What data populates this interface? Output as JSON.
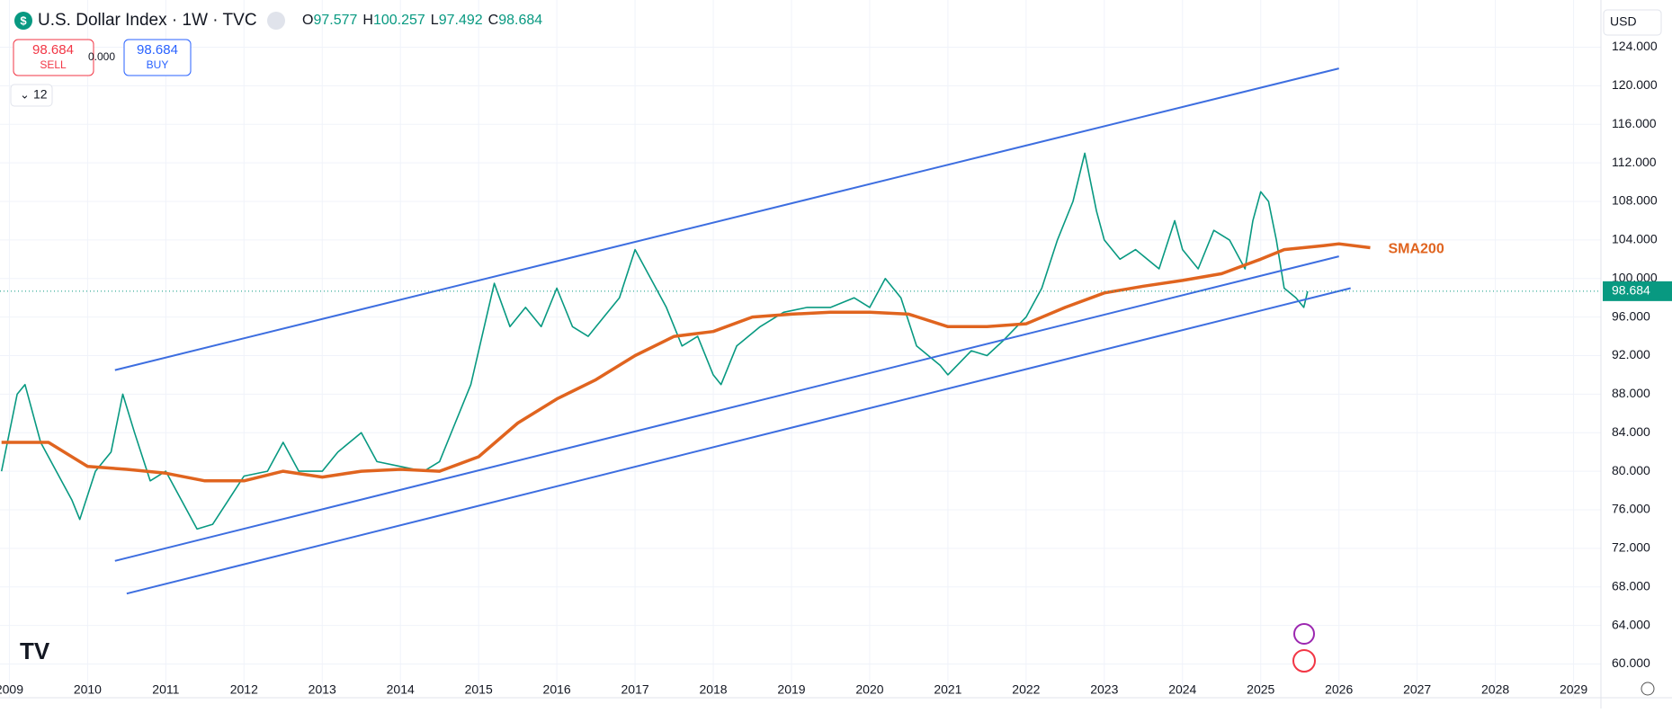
{
  "chart_data": {
    "type": "line",
    "title": "U.S. Dollar Index · 1W · TVC",
    "ohlc": [
      {
        "label": "O",
        "value": "97.577"
      },
      {
        "label": "H",
        "value": "100.257"
      },
      {
        "label": "L",
        "value": "97.492"
      },
      {
        "label": "C",
        "value": "98.684"
      }
    ],
    "sell": {
      "price": "98.684",
      "label": "SELL"
    },
    "spread": "0.000",
    "buy": {
      "price": "98.684",
      "label": "BUY"
    },
    "interval_menu": "12",
    "currency": "USD",
    "last_price": {
      "value": 98.684,
      "label": "98.684"
    },
    "xlim": [
      2008.88,
      2029.35
    ],
    "ylim": [
      56.5,
      128.9
    ],
    "xticks": [
      2009,
      2010,
      2011,
      2012,
      2013,
      2014,
      2015,
      2016,
      2017,
      2018,
      2019,
      2020,
      2021,
      2022,
      2023,
      2024,
      2025,
      2026,
      2027,
      2028,
      2029
    ],
    "yticks": [
      {
        "value": 60,
        "label": "60.000"
      },
      {
        "value": 64,
        "label": "64.000"
      },
      {
        "value": 68,
        "label": "68.000"
      },
      {
        "value": 72,
        "label": "72.000"
      },
      {
        "value": 76,
        "label": "76.000"
      },
      {
        "value": 80,
        "label": "80.000"
      },
      {
        "value": 84,
        "label": "84.000"
      },
      {
        "value": 88,
        "label": "88.000"
      },
      {
        "value": 92,
        "label": "92.000"
      },
      {
        "value": 96,
        "label": "96.000"
      },
      {
        "value": 100,
        "label": "100.000"
      },
      {
        "value": 104,
        "label": "104.000"
      },
      {
        "value": 108,
        "label": "108.000"
      },
      {
        "value": 112,
        "label": "112.000"
      },
      {
        "value": 116,
        "label": "116.000"
      },
      {
        "value": 120,
        "label": "120.000"
      },
      {
        "value": 124,
        "label": "124.000"
      }
    ],
    "series": [
      {
        "color": "#089981",
        "x": [
          2008.9,
          2009.1,
          2009.2,
          2009.4,
          2009.6,
          2009.8,
          2009.9,
          2010.1,
          2010.3,
          2010.45,
          2010.6,
          2010.8,
          2011.0,
          2011.2,
          2011.4,
          2011.6,
          2011.8,
          2012.0,
          2012.3,
          2012.5,
          2012.7,
          2013.0,
          2013.2,
          2013.5,
          2013.7,
          2014.0,
          2014.3,
          2014.5,
          2014.7,
          2014.9,
          2015.1,
          2015.2,
          2015.4,
          2015.6,
          2015.8,
          2016.0,
          2016.2,
          2016.4,
          2016.6,
          2016.8,
          2017.0,
          2017.2,
          2017.4,
          2017.6,
          2017.8,
          2018.0,
          2018.1,
          2018.3,
          2018.6,
          2018.9,
          2019.2,
          2019.5,
          2019.8,
          2020.0,
          2020.2,
          2020.4,
          2020.6,
          2020.9,
          2021.0,
          2021.3,
          2021.5,
          2021.7,
          2022.0,
          2022.2,
          2022.4,
          2022.6,
          2022.75,
          2022.9,
          2023.0,
          2023.2,
          2023.4,
          2023.7,
          2023.9,
          2024.0,
          2024.2,
          2024.4,
          2024.6,
          2024.8,
          2024.9,
          2025.0,
          2025.1,
          2025.2,
          2025.3,
          2025.45,
          2025.55,
          2025.6
        ],
        "values": [
          80,
          88,
          89,
          83,
          80,
          77,
          75,
          80,
          82,
          88,
          84,
          79,
          80,
          77,
          74,
          74.5,
          77,
          79.5,
          80,
          83,
          80,
          80,
          82,
          84,
          81,
          80.5,
          80,
          81,
          85,
          89,
          96,
          99.5,
          95,
          97,
          95,
          99,
          95,
          94,
          96,
          98,
          103,
          100,
          97,
          93,
          94,
          90,
          89,
          93,
          95,
          96.5,
          97,
          97,
          98,
          97,
          100,
          98,
          93,
          91,
          90,
          92.5,
          92,
          93.5,
          96,
          99,
          104,
          108,
          113,
          107,
          104,
          102,
          103,
          101,
          106,
          103,
          101,
          105,
          104,
          101,
          106,
          109,
          108,
          104,
          99,
          98,
          97,
          98.684
        ]
      },
      {
        "name": "SMA200",
        "color": "#e0641f",
        "x": [
          2008.9,
          2009.5,
          2010.0,
          2010.5,
          2011.0,
          2011.5,
          2012.0,
          2012.5,
          2013.0,
          2013.5,
          2014.0,
          2014.5,
          2015.0,
          2015.5,
          2016.0,
          2016.5,
          2017.0,
          2017.5,
          2018.0,
          2018.5,
          2019.0,
          2019.5,
          2020.0,
          2020.5,
          2021.0,
          2021.5,
          2022.0,
          2022.5,
          2023.0,
          2023.5,
          2024.0,
          2024.5,
          2025.0,
          2025.3,
          2025.8,
          2026.0,
          2026.4
        ],
        "values": [
          83,
          83,
          80.5,
          80.2,
          79.8,
          79,
          79,
          80,
          79.4,
          80,
          80.2,
          80,
          81.5,
          85,
          87.5,
          89.5,
          92,
          94,
          94.5,
          96,
          96.3,
          96.5,
          96.5,
          96.3,
          95,
          95,
          95.3,
          97,
          98.5,
          99.2,
          99.8,
          100.5,
          102,
          103,
          103.4,
          103.6,
          103.2
        ]
      },
      {
        "color": "#3d6ee0",
        "x": [
          2010.35,
          2026.0
        ],
        "values": [
          90.5,
          121.8
        ]
      },
      {
        "color": "#3d6ee0",
        "x": [
          2010.35,
          2026.0
        ],
        "values": [
          70.7,
          102.3
        ]
      },
      {
        "color": "#3d6ee0",
        "x": [
          2010.5,
          2026.15
        ],
        "values": [
          67.3,
          99
        ]
      }
    ]
  }
}
